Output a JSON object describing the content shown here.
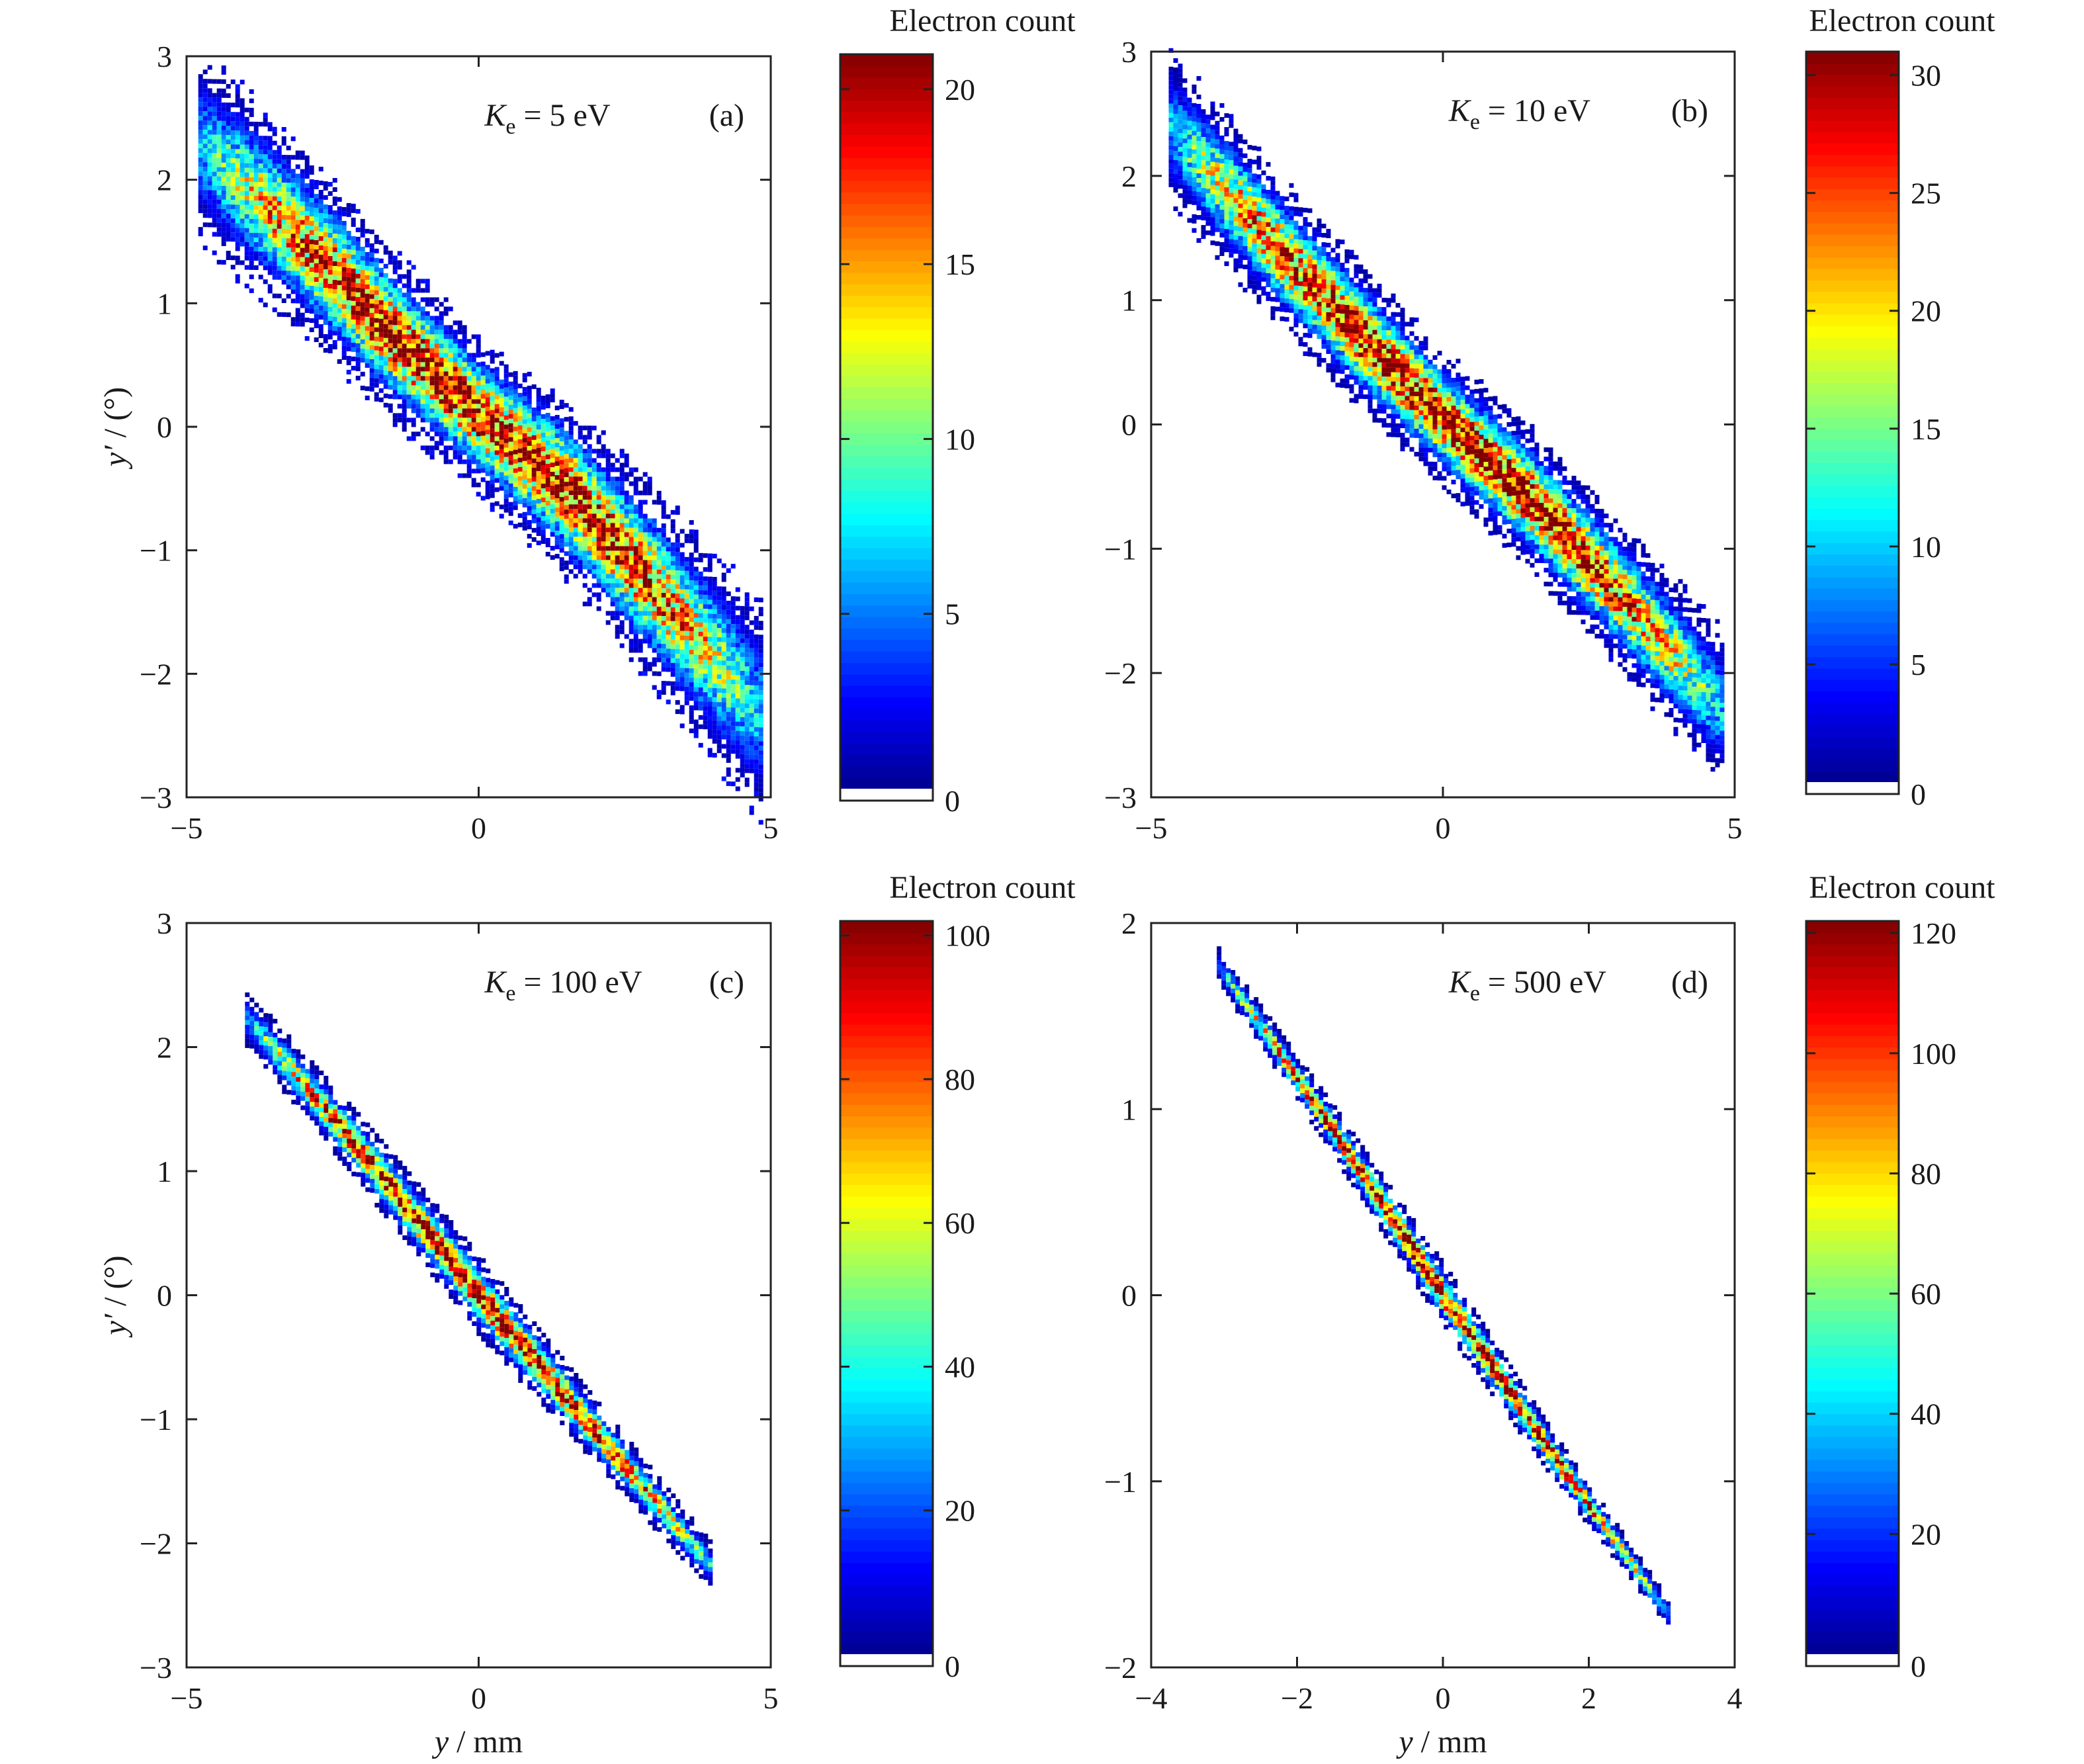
{
  "chart_data": [
    {
      "id": "a",
      "type": "heatmap",
      "panel_label": "(a)",
      "annotation": {
        "symbol": "K",
        "subscript": "e",
        "equals": "=",
        "value": "5 eV"
      },
      "xlabel": "",
      "ylabel_main": "y′",
      "ylabel_unit": " / (°)",
      "xlim": [
        -5,
        5
      ],
      "ylim": [
        -3,
        3
      ],
      "xticks": [
        -5,
        0,
        5
      ],
      "yticks": [
        -3,
        -2,
        -1,
        0,
        1,
        2,
        3
      ],
      "colorbar": {
        "title": "Electron count",
        "min": 0,
        "max": 21,
        "ticks": [
          0,
          5,
          10,
          15,
          20
        ]
      },
      "distribution": {
        "x_range": [
          -4.8,
          4.8
        ],
        "centerline": [
          [
            -4.8,
            2.3
          ],
          [
            -3,
            1.5
          ],
          [
            -1.5,
            0.75
          ],
          [
            0,
            0.1
          ],
          [
            1.5,
            -0.5
          ],
          [
            3,
            -1.3
          ],
          [
            4.8,
            -2.3
          ]
        ],
        "band_halfwidth": [
          [
            -4.8,
            0.45
          ],
          [
            0,
            0.35
          ],
          [
            4.8,
            0.5
          ]
        ],
        "peak": 20
      }
    },
    {
      "id": "b",
      "type": "heatmap",
      "panel_label": "(b)",
      "annotation": {
        "symbol": "K",
        "subscript": "e",
        "equals": "=",
        "value": "10 eV"
      },
      "xlabel": "",
      "ylabel_main": "",
      "ylabel_unit": "",
      "xlim": [
        -5,
        5
      ],
      "ylim": [
        -3,
        3
      ],
      "xticks": [
        -5,
        0,
        5
      ],
      "yticks": [
        -3,
        -2,
        -1,
        0,
        1,
        2,
        3
      ],
      "colorbar": {
        "title": "Electron count",
        "min": 0,
        "max": 31,
        "ticks": [
          0,
          5,
          10,
          15,
          20,
          25,
          30
        ]
      },
      "distribution": {
        "x_range": [
          -4.7,
          4.8
        ],
        "centerline": [
          [
            -4.7,
            2.4
          ],
          [
            -3,
            1.5
          ],
          [
            -1.5,
            0.75
          ],
          [
            0,
            0.05
          ],
          [
            1.5,
            -0.6
          ],
          [
            3,
            -1.35
          ],
          [
            4.8,
            -2.3
          ]
        ],
        "band_halfwidth": [
          [
            -4.7,
            0.35
          ],
          [
            0,
            0.3
          ],
          [
            4.8,
            0.35
          ]
        ],
        "peak": 30
      }
    },
    {
      "id": "c",
      "type": "heatmap",
      "panel_label": "(c)",
      "annotation": {
        "symbol": "K",
        "subscript": "e",
        "equals": "=",
        "value": "100 eV"
      },
      "xlabel_main": "y",
      "xlabel_unit": " / mm",
      "ylabel_main": "y′",
      "ylabel_unit": " / (°)",
      "xlim": [
        -5,
        5
      ],
      "ylim": [
        -3,
        3
      ],
      "xticks": [
        -5,
        0,
        5
      ],
      "yticks": [
        -3,
        -2,
        -1,
        0,
        1,
        2,
        3
      ],
      "colorbar": {
        "title": "Electron count",
        "min": 0,
        "max": 102,
        "ticks": [
          0,
          20,
          40,
          60,
          80,
          100
        ]
      },
      "distribution": {
        "x_range": [
          -4.0,
          4.0
        ],
        "centerline": [
          [
            -4.0,
            2.25
          ],
          [
            -2,
            1.15
          ],
          [
            0,
            0.0
          ],
          [
            2,
            -1.1
          ],
          [
            4.0,
            -2.2
          ]
        ],
        "band_halfwidth": [
          [
            -4.0,
            0.12
          ],
          [
            0,
            0.17
          ],
          [
            4.0,
            0.1
          ]
        ],
        "peak": 98
      }
    },
    {
      "id": "d",
      "type": "heatmap",
      "panel_label": "(d)",
      "annotation": {
        "symbol": "K",
        "subscript": "e",
        "equals": "=",
        "value": "500 eV"
      },
      "xlabel_main": "y",
      "xlabel_unit": " / mm",
      "ylabel_main": "",
      "ylabel_unit": "",
      "xlim": [
        -4,
        4
      ],
      "ylim": [
        -2,
        2
      ],
      "xticks": [
        -4,
        -2,
        0,
        2,
        4
      ],
      "yticks": [
        -2,
        -1,
        0,
        1,
        2
      ],
      "colorbar": {
        "title": "Electron count",
        "min": 0,
        "max": 122,
        "ticks": [
          0,
          20,
          40,
          60,
          80,
          100,
          120
        ]
      },
      "distribution": {
        "x_range": [
          -3.1,
          3.1
        ],
        "centerline": [
          [
            -3.1,
            1.78
          ],
          [
            -1.5,
            0.88
          ],
          [
            0,
            0.0
          ],
          [
            1.5,
            -0.86
          ],
          [
            3.1,
            -1.72
          ]
        ],
        "band_halfwidth": [
          [
            -3.1,
            0.05
          ],
          [
            0,
            0.09
          ],
          [
            3.1,
            0.04
          ]
        ],
        "peak": 118
      }
    }
  ]
}
